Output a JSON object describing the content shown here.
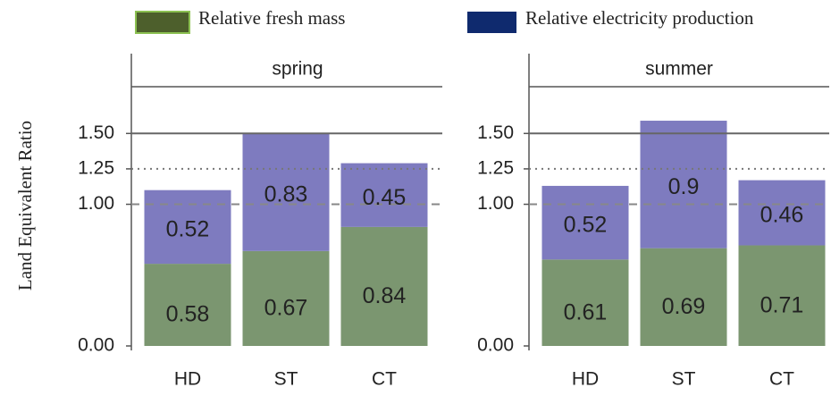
{
  "chart_data": {
    "type": "bar",
    "stacked": true,
    "ylabel": "Land Equivalent Ratio",
    "ylim": [
      -0.03,
      1.83
    ],
    "yticks": [
      {
        "value": 0,
        "label": "0.00"
      },
      {
        "value": 1,
        "label": "1.00"
      },
      {
        "value": 1.25,
        "label": "1.25"
      },
      {
        "value": 1.5,
        "label": "1.50"
      }
    ],
    "grid_styles": [
      "none",
      "dashed",
      "dotted",
      "solid"
    ],
    "legend": "top",
    "series": [
      {
        "name": "Relative fresh mass",
        "color": "#7b9670",
        "legend_color": "#4d5f2c"
      },
      {
        "name": "Relative electricity production",
        "color": "#7e7bbf",
        "legend_color": "#0f2a6e"
      }
    ],
    "facets": [
      {
        "title": "spring",
        "categories": [
          "HD",
          "ST",
          "CT"
        ],
        "values": [
          [
            0.58,
            0.67,
            0.84
          ],
          [
            0.52,
            0.83,
            0.45
          ]
        ]
      },
      {
        "title": "summer",
        "categories": [
          "HD",
          "ST",
          "CT"
        ],
        "values": [
          [
            0.61,
            0.69,
            0.71
          ],
          [
            0.52,
            0.9,
            0.46
          ]
        ]
      }
    ]
  }
}
